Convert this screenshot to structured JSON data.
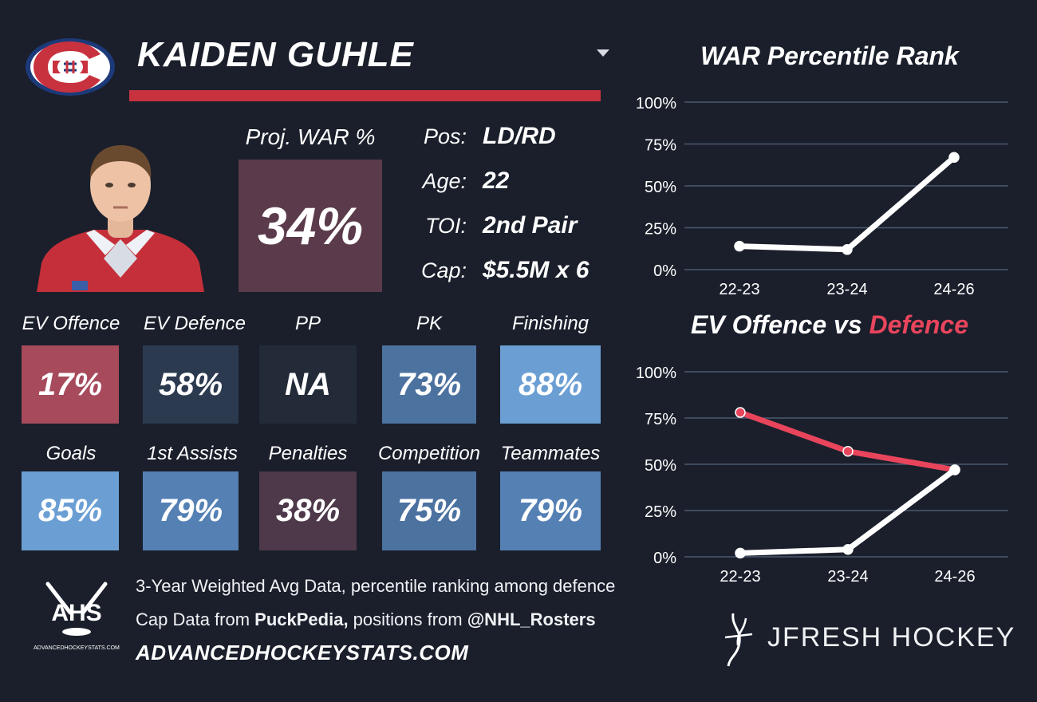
{
  "player": {
    "name": "KAIDEN GUHLE",
    "team_logo": "montreal-canadiens-logo",
    "photo": "player-headshot"
  },
  "proj_war": {
    "label": "Proj. WAR %",
    "value": "34%"
  },
  "info": [
    {
      "key": "Pos:",
      "value": "LD/RD"
    },
    {
      "key": "Age:",
      "value": "22"
    },
    {
      "key": "TOI:",
      "value": "2nd Pair"
    },
    {
      "key": "Cap:",
      "value": "$5.5M x 6"
    }
  ],
  "tiles": [
    {
      "label": "EV Offence",
      "value": "17%",
      "color": "#a64a5c"
    },
    {
      "label": "EV Defence",
      "value": "58%",
      "color": "#2c3a50"
    },
    {
      "label": "PP",
      "value": "NA",
      "color": "#232b38"
    },
    {
      "label": "PK",
      "value": "73%",
      "color": "#4c72a0"
    },
    {
      "label": "Finishing",
      "value": "88%",
      "color": "#6b9fd4"
    },
    {
      "label": "Goals",
      "value": "85%",
      "color": "#6b9fd4"
    },
    {
      "label": "1st Assists",
      "value": "79%",
      "color": "#5480b4"
    },
    {
      "label": "Penalties",
      "value": "38%",
      "color": "#4d3949"
    },
    {
      "label": "Competition",
      "value": "75%",
      "color": "#4c72a0"
    },
    {
      "label": "Teammates",
      "value": "79%",
      "color": "#5480b4"
    }
  ],
  "footer": {
    "line1": "3-Year Weighted Avg Data, percentile ranking among defence",
    "line2_pre": "Cap Data from ",
    "line2_b1": "PuckPedia,",
    "line2_mid": " positions from ",
    "line2_b2": "@NHL_Rosters",
    "site": "ADVANCEDHOCKEYSTATS.COM",
    "ahs_logo_text": "AHS",
    "ahs_logo_sub": "ADVANCEDHOCKEYSTATS.COM",
    "brand": "JFRESH HOCKEY"
  },
  "colors": {
    "background": "#1a1f2b",
    "accent_red": "#c8323f",
    "defence_line": "#e8455c",
    "grid": "#4a5870"
  },
  "chart_data": [
    {
      "type": "line",
      "title": "WAR Percentile Rank",
      "categories": [
        "22-23",
        "23-24",
        "24-26"
      ],
      "series": [
        {
          "values": [
            14,
            12,
            67
          ],
          "color": "#ffffff"
        }
      ],
      "ylim": [
        0,
        100
      ],
      "yticks": [
        "0%",
        "25%",
        "50%",
        "75%",
        "100%"
      ],
      "grid": true
    },
    {
      "type": "line",
      "title_parts": [
        "EV Offence vs ",
        "Defence"
      ],
      "categories": [
        "22-23",
        "23-24",
        "24-26"
      ],
      "series": [
        {
          "name": "EV Offence",
          "values": [
            2,
            4,
            47
          ],
          "color": "#ffffff"
        },
        {
          "name": "Defence",
          "values": [
            78,
            57,
            47
          ],
          "color": "#e8455c"
        }
      ],
      "ylim": [
        0,
        100
      ],
      "yticks": [
        "0%",
        "25%",
        "50%",
        "75%",
        "100%"
      ],
      "grid": true
    }
  ]
}
